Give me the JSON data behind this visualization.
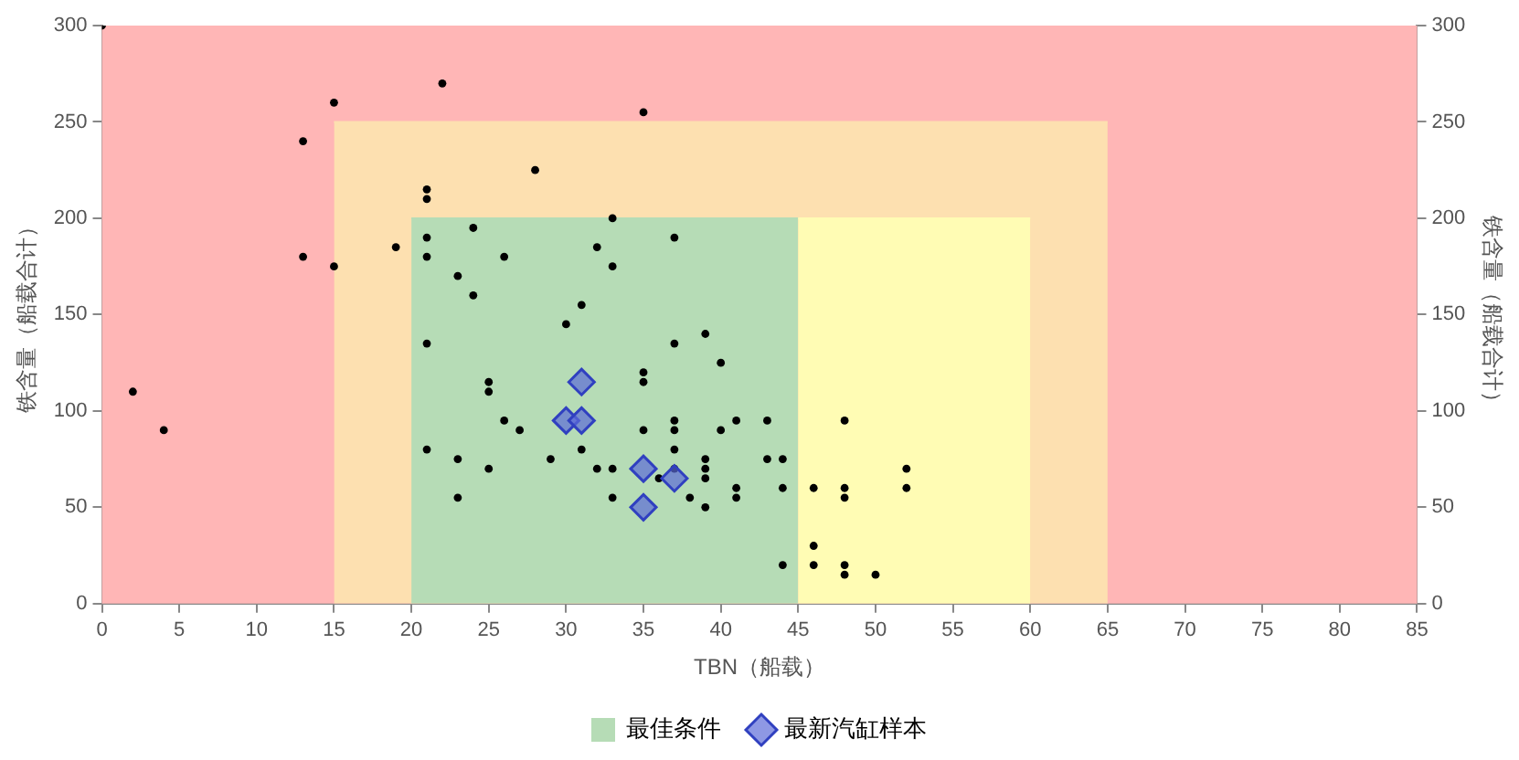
{
  "chart_data": {
    "type": "scatter",
    "xlabel": "TBN（船载）",
    "ylabel": "铁含量（船载合计）",
    "y2label": "铁含量（船载合计）",
    "xlim": [
      0,
      85
    ],
    "xticks": [
      0,
      5,
      10,
      15,
      20,
      25,
      30,
      35,
      40,
      45,
      50,
      55,
      60,
      65,
      70,
      75,
      80,
      85
    ],
    "ylim": [
      0,
      300
    ],
    "yticks": [
      0,
      50,
      100,
      150,
      200,
      250,
      300
    ],
    "y2lim": [
      0,
      300
    ],
    "y2ticks": [
      0,
      50,
      100,
      150,
      200,
      250,
      300
    ],
    "legend": "bottom",
    "bands": [
      {
        "axis": "x",
        "from": 0,
        "to": 85,
        "color": "#ffb6b6"
      }
    ],
    "series": [
      {
        "type": "area",
        "color": "#fde0b0",
        "x": [
          15,
          65
        ],
        "values": [
          250,
          250
        ]
      },
      {
        "type": "area",
        "name": "最佳条件",
        "color": "#b6dcb6",
        "x": [
          20,
          45
        ],
        "values": [
          200,
          200
        ]
      },
      {
        "type": "area",
        "color": "#fffcb4",
        "x": [
          45,
          60
        ],
        "values": [
          200,
          200
        ]
      },
      {
        "type": "scatter",
        "marker": "circle",
        "color": "#000000",
        "x": [
          0,
          2,
          4,
          13,
          13,
          15,
          15,
          19,
          22,
          28,
          35,
          21,
          21,
          21,
          21,
          21,
          21,
          23,
          24,
          24,
          25,
          25,
          26,
          23,
          23,
          25,
          26,
          27,
          29,
          30,
          31,
          31,
          32,
          33,
          33,
          32,
          33,
          33,
          35,
          35,
          35,
          36,
          37,
          37,
          37,
          37,
          37,
          37,
          39,
          39,
          39,
          39,
          38,
          39,
          40,
          40,
          41,
          41,
          41,
          43,
          43,
          44,
          44,
          44,
          46,
          46,
          46,
          48,
          48,
          48,
          48,
          48,
          50,
          52,
          52
        ],
        "values": [
          300,
          110,
          90,
          240,
          180,
          260,
          175,
          185,
          270,
          225,
          255,
          215,
          210,
          190,
          180,
          135,
          80,
          170,
          195,
          160,
          115,
          110,
          180,
          75,
          55,
          70,
          95,
          90,
          75,
          145,
          155,
          80,
          185,
          200,
          175,
          70,
          70,
          55,
          120,
          115,
          90,
          65,
          190,
          135,
          95,
          90,
          80,
          70,
          140,
          75,
          70,
          65,
          55,
          50,
          125,
          90,
          95,
          60,
          55,
          95,
          75,
          75,
          60,
          20,
          60,
          30,
          20,
          95,
          60,
          55,
          20,
          15,
          15,
          70,
          60
        ]
      },
      {
        "type": "scatter",
        "marker": "diamond",
        "name": "最新汽缸样本",
        "color": "#5b6ad8",
        "x": [
          31,
          30,
          31,
          35,
          37,
          35
        ],
        "values": [
          115,
          95,
          95,
          70,
          65,
          50
        ]
      }
    ]
  }
}
